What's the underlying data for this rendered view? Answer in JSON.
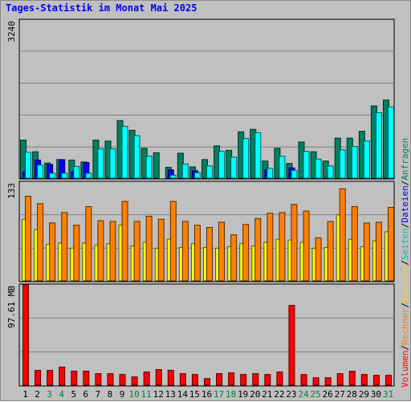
{
  "title": "Tages-Statistik im Monat Mai 2025",
  "chart_data": {
    "type": "bar",
    "title": "Tages-Statistik im Monat Mai 2025",
    "categories": [
      "1",
      "2",
      "3",
      "4",
      "5",
      "6",
      "7",
      "8",
      "9",
      "10",
      "11",
      "12",
      "13",
      "14",
      "15",
      "16",
      "17",
      "18",
      "19",
      "20",
      "21",
      "22",
      "23",
      "24",
      "25",
      "26",
      "27",
      "28",
      "29",
      "30",
      "31"
    ],
    "weekend_days": [
      "3",
      "4",
      "10",
      "11",
      "17",
      "18",
      "24",
      "25",
      "31"
    ],
    "colors": {
      "weekday_label": "#000000",
      "weekend_label": "#008040",
      "background": "#c0c0c0",
      "grid": "#808080"
    },
    "panels": [
      {
        "id": "top",
        "ymax_label": "3240",
        "ylim": [
          0,
          3240
        ],
        "series": [
          {
            "name": "Anfragen",
            "color": "#008060",
            "values": [
              780,
              540,
              310,
              380,
              370,
              330,
              780,
              760,
              1180,
              980,
              610,
              520,
              220,
              510,
              230,
              380,
              660,
              570,
              950,
              1000,
              350,
              610,
              300,
              740,
              540,
              350,
              820,
              820,
              960,
              1480,
              1600
            ]
          },
          {
            "name": "Dateien",
            "color": "#0000ff",
            "values": [
              130,
              370,
              280,
              380,
              130,
              320,
              0,
              0,
              0,
              0,
              0,
              0,
              170,
              0,
              150,
              0,
              0,
              0,
              0,
              0,
              170,
              0,
              210,
              0,
              0,
              0,
              0,
              0,
              0,
              0,
              0
            ]
          },
          {
            "name": "Seiten",
            "color": "#00ffff",
            "values": [
              530,
              270,
              100,
              100,
              240,
              100,
              600,
              600,
              1060,
              870,
              450,
              0,
              60,
              290,
              110,
              250,
              550,
              430,
              810,
              930,
              200,
              450,
              160,
              550,
              390,
              250,
              580,
              650,
              760,
              1340,
              1460
            ]
          }
        ]
      },
      {
        "id": "middle",
        "ymax_label": "133",
        "ylim": [
          0,
          133
        ],
        "series": [
          {
            "name": "Besuche",
            "color": "#ffff00",
            "values": [
              83,
              69,
              49,
              51,
              44,
              51,
              48,
              50,
              75,
              47,
              52,
              44,
              56,
              45,
              50,
              45,
              44,
              46,
              50,
              47,
              52,
              56,
              55,
              52,
              44,
              45,
              89,
              56,
              46,
              54,
              66
            ]
          },
          {
            "name": "Rechner",
            "color": "#ff8000",
            "values": [
              114,
              104,
              78,
              92,
              75,
              100,
              81,
              80,
              107,
              80,
              87,
              83,
              107,
              80,
              75,
              72,
              79,
              62,
              76,
              84,
              91,
              92,
              103,
              94,
              58,
              80,
              124,
              100,
              78,
              79,
              99
            ]
          }
        ]
      },
      {
        "id": "bottom",
        "ymax_label": "97.61 MB",
        "ylim": [
          0,
          97.61
        ],
        "series": [
          {
            "name": "Volumen",
            "color": "#ff0000",
            "values": [
              97.61,
              14.4,
              14.4,
              17.6,
              13.6,
              13.6,
              11.2,
              11.2,
              10.4,
              8.0,
              12.8,
              15.2,
              14.4,
              11.2,
              10.4,
              6.4,
              11.2,
              12.0,
              10.4,
              11.2,
              10.4,
              12.8,
              77.6,
              10.4,
              7.2,
              7.2,
              11.2,
              13.6,
              10.4,
              9.6,
              9.6
            ]
          }
        ]
      }
    ],
    "legend": [
      {
        "text": "Volumen",
        "color": "#ff0000"
      },
      {
        "text": "Rechner",
        "color": "#ff8000"
      },
      {
        "text": "Besuche",
        "color": "#ffd000"
      },
      {
        "text": "Seiten",
        "color": "#00c0c0"
      },
      {
        "text": "Dateien",
        "color": "#0000ff"
      },
      {
        "text": "Anfragen",
        "color": "#008060"
      }
    ],
    "legend_separator": "/",
    "legend_separator_color": "#000000",
    "legend_placement": "right-vertical",
    "grid": true
  }
}
